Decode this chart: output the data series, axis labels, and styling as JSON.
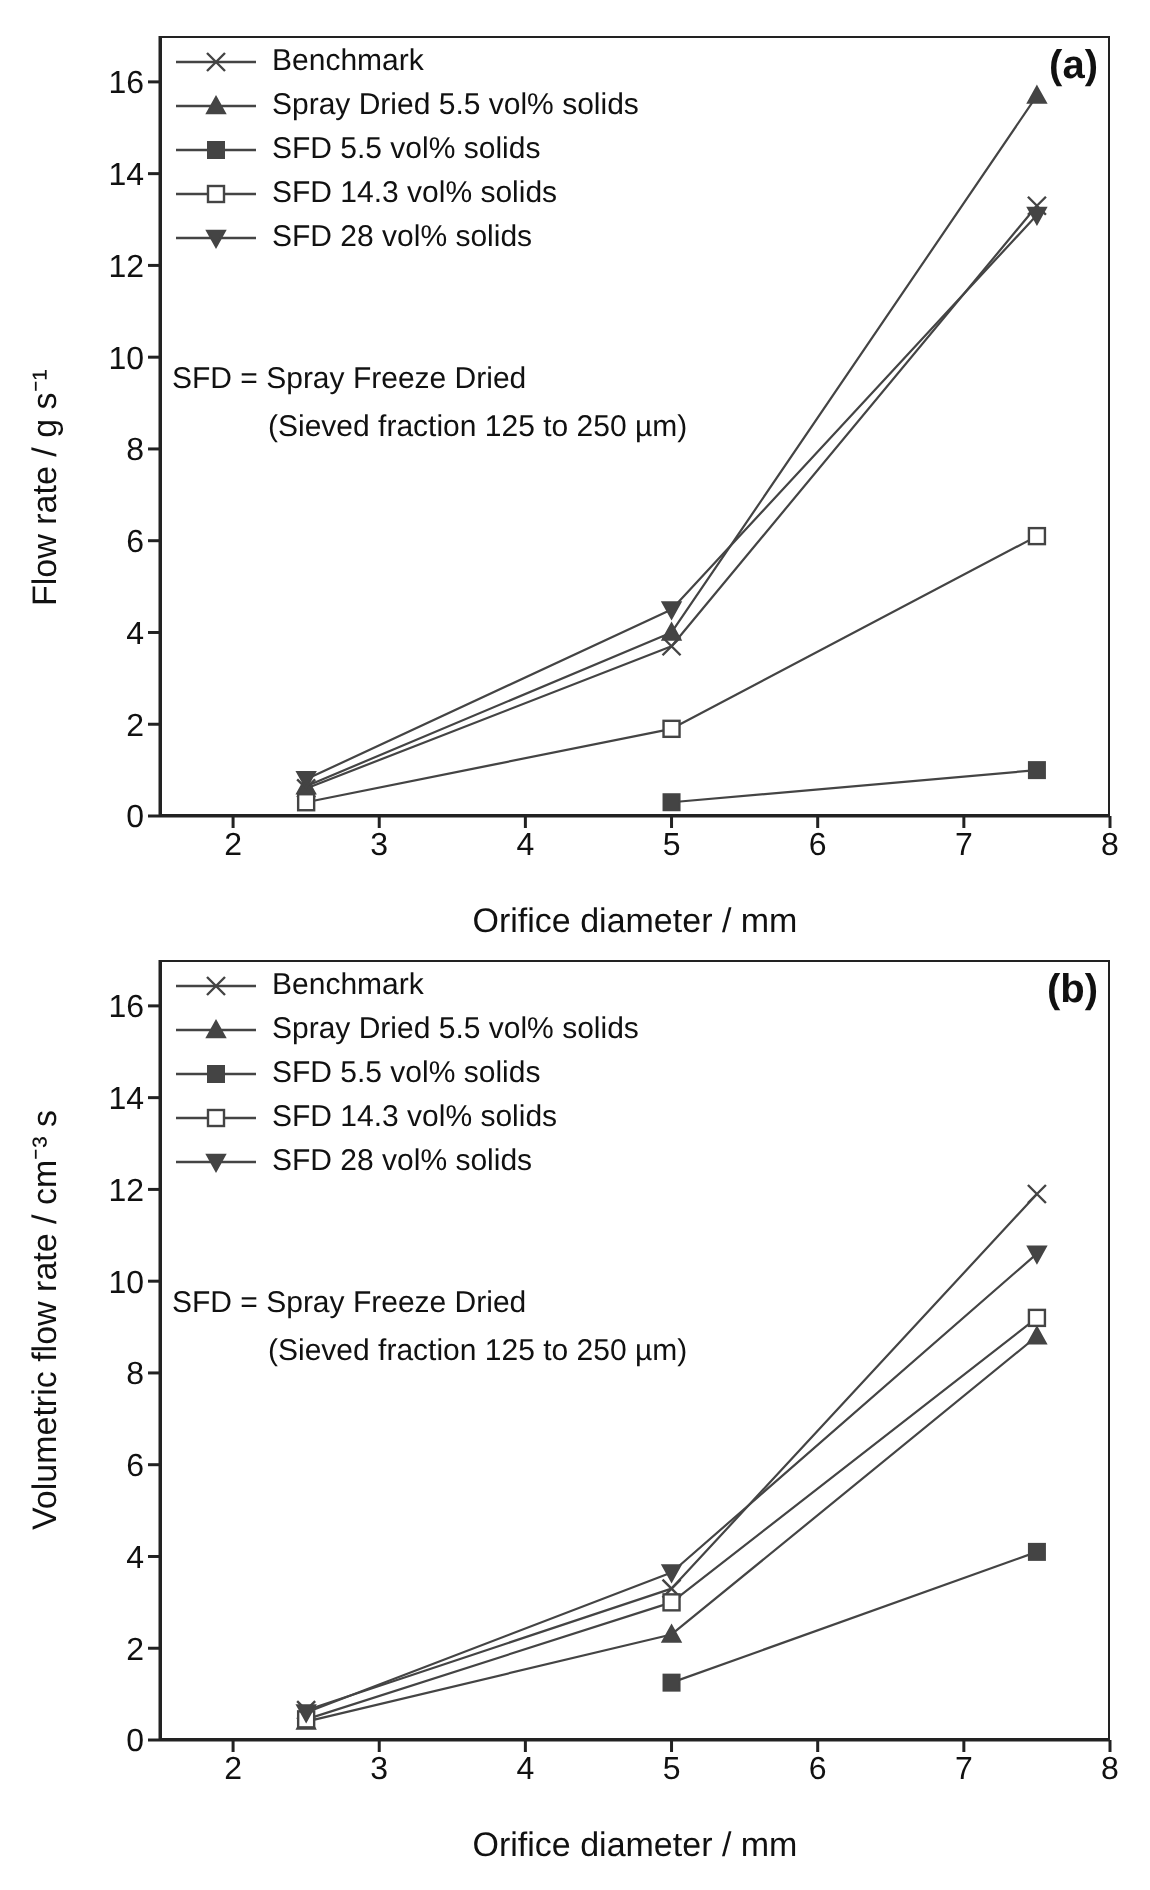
{
  "chart_data": [
    {
      "type": "line",
      "title": "(a)",
      "xlabel": "Orifice diameter / mm",
      "ylabel": "Flow rate / g s⁻¹",
      "x": [
        2.5,
        5,
        7.5
      ],
      "series": [
        {
          "name": "Benchmark",
          "color": "#444444",
          "marker": "cross",
          "values": [
            0.6,
            3.7,
            13.3
          ]
        },
        {
          "name": "Spray Dried 5.5 vol% solids",
          "color": "#444444",
          "marker": "triangle",
          "values": [
            0.65,
            4.0,
            15.7
          ]
        },
        {
          "name": "SFD 5.5 vol% solids",
          "color": "#444444",
          "marker": "square",
          "values": [
            null,
            0.3,
            1.0
          ]
        },
        {
          "name": "SFD 14.3 vol% solids",
          "color": "#444444",
          "marker": "square_open",
          "values": [
            0.3,
            1.9,
            6.1
          ]
        },
        {
          "name": "SFD 28 vol% solids",
          "color": "#444444",
          "marker": "triangle_down",
          "values": [
            0.8,
            4.5,
            13.1
          ]
        }
      ],
      "annotations": [
        "SFD = Spray Freeze Dried",
        "(Sieved fraction 125 to 250 µm)"
      ],
      "xlim": [
        1.5,
        8
      ],
      "xticks": [
        2,
        3,
        4,
        5,
        6,
        7,
        8
      ],
      "ylim": [
        0,
        17
      ],
      "yticks": [
        0,
        2,
        4,
        6,
        8,
        10,
        12,
        14,
        16
      ],
      "grid": false,
      "legend": "top left",
      "line_style": "solid"
    },
    {
      "type": "line",
      "title": "(b)",
      "xlabel": "Orifice diameter / mm",
      "ylabel": "Volumetric flow rate / cm⁻³ s",
      "x": [
        2.5,
        5,
        7.5
      ],
      "series": [
        {
          "name": "Benchmark",
          "color": "#444444",
          "marker": "cross",
          "values": [
            0.65,
            3.3,
            11.9
          ]
        },
        {
          "name": "Spray Dried 5.5 vol% solids",
          "color": "#444444",
          "marker": "triangle",
          "values": [
            0.4,
            2.3,
            8.8
          ]
        },
        {
          "name": "SFD 5.5 vol% solids",
          "color": "#444444",
          "marker": "square",
          "values": [
            null,
            1.25,
            4.1
          ]
        },
        {
          "name": "SFD 14.3 vol% solids",
          "color": "#444444",
          "marker": "square_open",
          "values": [
            0.45,
            3.0,
            9.2
          ]
        },
        {
          "name": "SFD 28 vol% solids",
          "color": "#444444",
          "marker": "triangle_down",
          "values": [
            0.6,
            3.65,
            10.6
          ]
        }
      ],
      "annotations": [
        "SFD = Spray Freeze Dried",
        "(Sieved fraction 125 to 250 µm)"
      ],
      "xlim": [
        1.5,
        8
      ],
      "xticks": [
        2,
        3,
        4,
        5,
        6,
        7,
        8
      ],
      "ylim": [
        0,
        17
      ],
      "yticks": [
        0,
        2,
        4,
        6,
        8,
        10,
        12,
        14,
        16
      ],
      "grid": false,
      "legend": "top left",
      "line_style": "solid"
    }
  ]
}
